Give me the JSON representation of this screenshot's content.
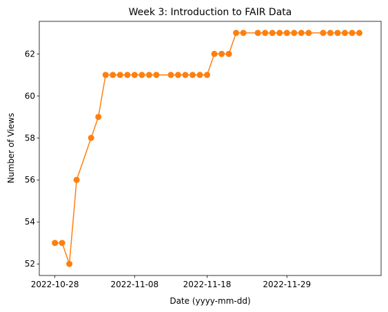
{
  "chart_data": {
    "type": "line",
    "title": "Week 3: Introduction to FAIR Data",
    "xlabel": "Date (yyyy-mm-dd)",
    "ylabel": "Number of Views",
    "x_tick_labels": [
      "2022-10-28",
      "2022-11-08",
      "2022-11-18",
      "2022-11-29"
    ],
    "y_ticks": [
      52,
      54,
      56,
      58,
      60,
      62
    ],
    "ylim": [
      51.45,
      63.55
    ],
    "xlim": [
      "2022-10-28",
      "2022-12-12"
    ],
    "grid": false,
    "legend": "none",
    "series": [
      {
        "color": "#ff7f0e",
        "marker": "circle",
        "points": [
          {
            "x": "2022-10-28",
            "y": 53
          },
          {
            "x": "2022-10-29",
            "y": 53
          },
          {
            "x": "2022-10-30",
            "y": 52
          },
          {
            "x": "2022-10-31",
            "y": 56
          },
          {
            "x": "2022-11-02",
            "y": 58
          },
          {
            "x": "2022-11-03",
            "y": 59
          },
          {
            "x": "2022-11-04",
            "y": 61
          },
          {
            "x": "2022-11-05",
            "y": 61
          },
          {
            "x": "2022-11-06",
            "y": 61
          },
          {
            "x": "2022-11-07",
            "y": 61
          },
          {
            "x": "2022-11-08",
            "y": 61
          },
          {
            "x": "2022-11-09",
            "y": 61
          },
          {
            "x": "2022-11-10",
            "y": 61
          },
          {
            "x": "2022-11-11",
            "y": 61
          },
          {
            "x": "2022-11-13",
            "y": 61
          },
          {
            "x": "2022-11-14",
            "y": 61
          },
          {
            "x": "2022-11-15",
            "y": 61
          },
          {
            "x": "2022-11-16",
            "y": 61
          },
          {
            "x": "2022-11-17",
            "y": 61
          },
          {
            "x": "2022-11-18",
            "y": 61
          },
          {
            "x": "2022-11-19",
            "y": 62
          },
          {
            "x": "2022-11-20",
            "y": 62
          },
          {
            "x": "2022-11-21",
            "y": 62
          },
          {
            "x": "2022-11-22",
            "y": 63
          },
          {
            "x": "2022-11-23",
            "y": 63
          },
          {
            "x": "2022-11-25",
            "y": 63
          },
          {
            "x": "2022-11-26",
            "y": 63
          },
          {
            "x": "2022-11-27",
            "y": 63
          },
          {
            "x": "2022-11-28",
            "y": 63
          },
          {
            "x": "2022-11-29",
            "y": 63
          },
          {
            "x": "2022-11-30",
            "y": 63
          },
          {
            "x": "2022-12-01",
            "y": 63
          },
          {
            "x": "2022-12-02",
            "y": 63
          },
          {
            "x": "2022-12-04",
            "y": 63
          },
          {
            "x": "2022-12-05",
            "y": 63
          },
          {
            "x": "2022-12-06",
            "y": 63
          },
          {
            "x": "2022-12-07",
            "y": 63
          },
          {
            "x": "2022-12-08",
            "y": 63
          },
          {
            "x": "2022-12-09",
            "y": 63
          }
        ]
      }
    ]
  }
}
